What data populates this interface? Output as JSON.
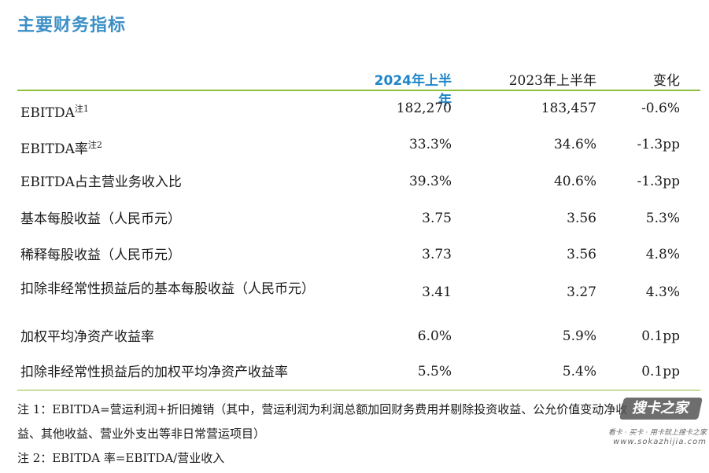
{
  "title": "主要财务指标",
  "headers": {
    "col1": "2024年上半年",
    "col2": "2023年上半年",
    "col3": "变化"
  },
  "rows": [
    {
      "label": "EBITDA",
      "sup": "注1",
      "v1": "182,270",
      "v2": "183,457",
      "v3": "-0.6%"
    },
    {
      "label": "EBITDA率",
      "sup": "注2",
      "v1": "33.3%",
      "v2": "34.6%",
      "v3": "-1.3pp"
    },
    {
      "label": "EBITDA占主营业务收入比",
      "sup": "",
      "v1": "39.3%",
      "v2": "40.6%",
      "v3": "-1.3pp"
    },
    {
      "label": "基本每股收益（人民币元）",
      "sup": "",
      "v1": "3.75",
      "v2": "3.56",
      "v3": "5.3%"
    },
    {
      "label": "稀释每股收益（人民币元）",
      "sup": "",
      "v1": "3.73",
      "v2": "3.56",
      "v3": "4.8%"
    },
    {
      "label": "扣除非经常性损益后的基本每股收益（人民币元）",
      "sup": "",
      "v1": "3.41",
      "v2": "3.27",
      "v3": "4.3%"
    },
    {
      "label": "加权平均净资产收益率",
      "sup": "",
      "v1": "6.0%",
      "v2": "5.9%",
      "v3": "0.1pp"
    },
    {
      "label": "扣除非经常性损益后的加权平均净资产收益率",
      "sup": "",
      "v1": "5.5%",
      "v2": "5.4%",
      "v3": "0.1pp"
    }
  ],
  "notes": {
    "note1_line1": "注 1：EBITDA=营运利润+折旧摊销（其中，营运利润为利润总额加回财务费用并剔除投资收益、公允价值变动净收",
    "note1_line2": "益、其他收益、营业外支出等非日常营运项目）",
    "note2": "注 2：EBITDA 率=EBITDA/营业收入"
  },
  "watermark": {
    "logo": "搜卡之家",
    "tagline": "看卡 · 买卡 · 用卡就上搜卡之家",
    "url": "www.sokazhijia.com"
  },
  "colors": {
    "title": "#3b8fc6",
    "header_highlight": "#1e86c8",
    "rule": "#8dbf3e"
  }
}
